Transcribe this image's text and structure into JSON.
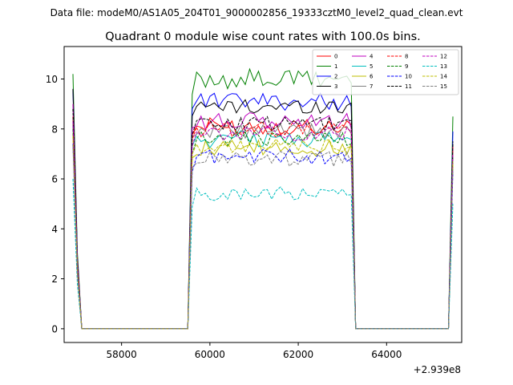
{
  "suptitle": "Data file: modeM0/AS1A05_204T01_9000002856_19333cztM0_level2_quad_clean.evt",
  "chart_data": {
    "type": "line",
    "title": "Quadrant 0 module wise count rates with 100.0s bins.",
    "xlabel": "",
    "ylabel": "",
    "x_offset_label": "+2.939e8",
    "xlim": [
      56700,
      65700
    ],
    "ylim": [
      -0.55,
      11.3
    ],
    "xticks": [
      58000,
      60000,
      62000,
      64000
    ],
    "xtick_labels": [
      "58000",
      "60000",
      "62000",
      "64000"
    ],
    "yticks": [
      0,
      2,
      4,
      6,
      8,
      10
    ],
    "ytick_labels": [
      "0",
      "2",
      "4",
      "6",
      "8",
      "10"
    ],
    "grid": false,
    "legend_position": "top-right",
    "segments": [
      {
        "start": 56900,
        "end": 57100,
        "points": 3
      },
      {
        "start": 57100,
        "end": 59500,
        "points": 25,
        "zero": true
      },
      {
        "start": 59600,
        "end": 63200,
        "points": 37
      },
      {
        "start": 63300,
        "end": 65500,
        "points": 23,
        "zero": true
      },
      {
        "start": 65600,
        "end": 65500,
        "points": 0
      }
    ],
    "series": [
      {
        "name": "0",
        "color": "#ff0000",
        "dash": "solid",
        "level": 8.1,
        "spike": 8.3,
        "end": 7.0,
        "amp": 0.35
      },
      {
        "name": "1",
        "color": "#008000",
        "dash": "solid",
        "level": 10.0,
        "spike": 10.2,
        "end": 8.5,
        "amp": 0.4
      },
      {
        "name": "2",
        "color": "#0000ff",
        "dash": "solid",
        "level": 9.1,
        "spike": 9.6,
        "end": 7.9,
        "amp": 0.35
      },
      {
        "name": "3",
        "color": "#000000",
        "dash": "solid",
        "level": 8.9,
        "spike": 9.6,
        "end": 7.4,
        "amp": 0.3
      },
      {
        "name": "4",
        "color": "#bf00bf",
        "dash": "solid",
        "level": 8.3,
        "spike": 9.0,
        "end": 7.2,
        "amp": 0.35
      },
      {
        "name": "5",
        "color": "#00bfbf",
        "dash": "solid",
        "level": 7.6,
        "spike": 8.2,
        "end": 6.9,
        "amp": 0.35
      },
      {
        "name": "6",
        "color": "#bfbf00",
        "dash": "solid",
        "level": 7.2,
        "spike": 7.8,
        "end": 6.6,
        "amp": 0.35
      },
      {
        "name": "7",
        "color": "#808080",
        "dash": "solid",
        "level": 7.9,
        "spike": 8.4,
        "end": 7.1,
        "amp": 0.3
      },
      {
        "name": "8",
        "color": "#ff0000",
        "dash": "dashed",
        "level": 8.0,
        "spike": 8.5,
        "end": 7.3,
        "amp": 0.35
      },
      {
        "name": "9",
        "color": "#008000",
        "dash": "dashed",
        "level": 7.6,
        "spike": 8.0,
        "end": 6.9,
        "amp": 0.3
      },
      {
        "name": "10",
        "color": "#0000ff",
        "dash": "dashed",
        "level": 6.9,
        "spike": 7.4,
        "end": 6.3,
        "amp": 0.3
      },
      {
        "name": "11",
        "color": "#000000",
        "dash": "dashed",
        "level": 8.2,
        "spike": 8.8,
        "end": 7.5,
        "amp": 0.3
      },
      {
        "name": "12",
        "color": "#bf00bf",
        "dash": "dashed",
        "level": 7.8,
        "spike": 8.3,
        "end": 7.0,
        "amp": 0.3
      },
      {
        "name": "13",
        "color": "#00bfbf",
        "dash": "dashed",
        "level": 5.4,
        "spike": 6.0,
        "end": 5.0,
        "amp": 0.3
      },
      {
        "name": "14",
        "color": "#bfbf00",
        "dash": "dashed",
        "level": 7.3,
        "spike": 7.7,
        "end": 6.7,
        "amp": 0.3
      },
      {
        "name": "15",
        "color": "#808080",
        "dash": "dashed",
        "level": 6.8,
        "spike": 7.3,
        "end": 6.4,
        "amp": 0.3
      }
    ]
  }
}
